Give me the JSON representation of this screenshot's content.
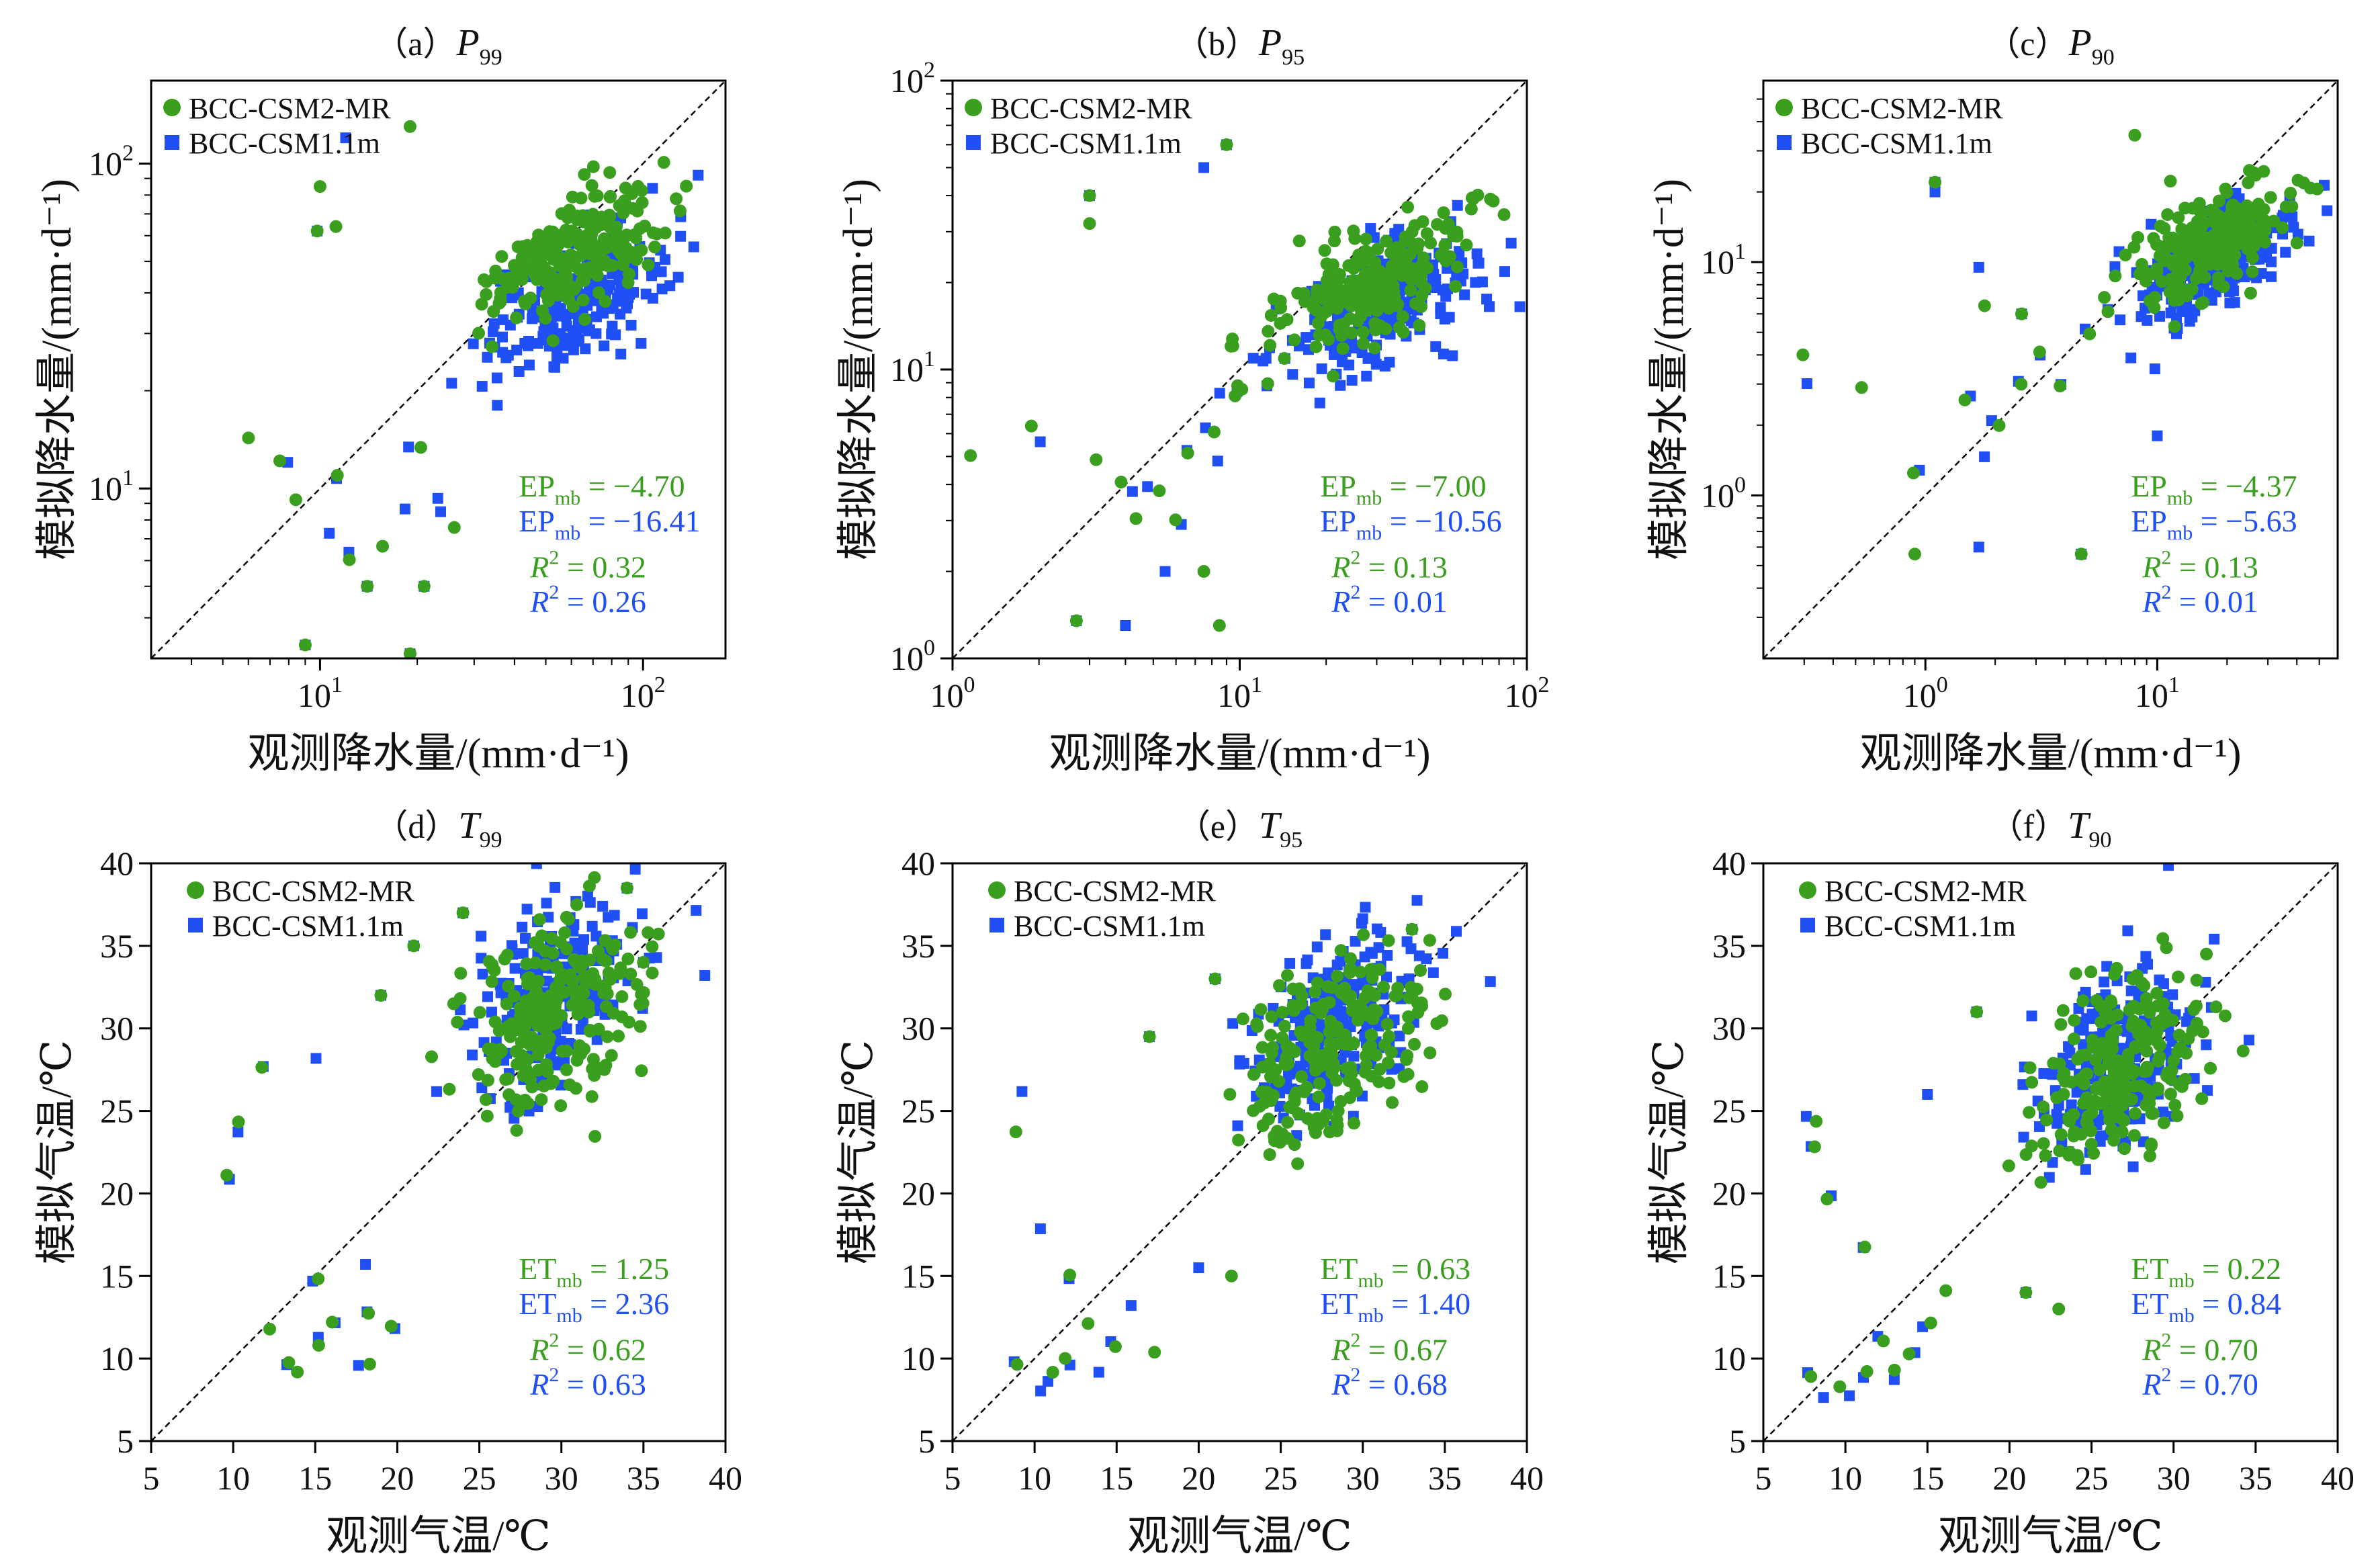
{
  "figure": {
    "axis_labels": {
      "precip_x": "观测降水量/(mm·d⁻¹)",
      "precip_y": "模拟降水量/(mm·d⁻¹)",
      "temp_x": "观测气温/℃",
      "temp_y": "模拟气温/℃"
    },
    "legend": {
      "series": [
        {
          "name": "BCC-CSM2-MR",
          "color": "#3a9e1e",
          "marker": "circle"
        },
        {
          "name": "BCC-CSM1.1m",
          "color": "#1f4ff5",
          "marker": "square"
        }
      ]
    }
  },
  "chart_data": [
    {
      "id": "a",
      "type": "scatter",
      "log": true,
      "title": {
        "prefix": "（a）",
        "var": "P",
        "sub": "99"
      },
      "xlim": [
        3,
        180
      ],
      "ylim": [
        3,
        180
      ],
      "xticks": [
        {
          "v": 10,
          "b": "10",
          "e": "1"
        },
        {
          "v": 100,
          "b": "10",
          "e": "2"
        }
      ],
      "yticks": [
        {
          "v": 10,
          "b": "10",
          "e": "1"
        },
        {
          "v": 100,
          "b": "10",
          "e": "2"
        }
      ],
      "center": [
        62,
        52
      ],
      "spread_x": 0.14,
      "spread_y": 0.09,
      "offset_b": -0.14,
      "lower": [
        [
          6,
          15
        ],
        [
          8,
          12
        ],
        [
          9,
          9
        ],
        [
          10,
          7
        ],
        [
          12,
          11
        ],
        [
          13,
          6
        ],
        [
          15,
          7
        ],
        [
          19,
          9
        ],
        [
          20,
          14
        ],
        [
          22,
          9
        ],
        [
          25,
          8
        ]
      ],
      "outliers": [
        [
          10,
          85
        ],
        [
          12,
          120
        ],
        [
          19,
          130
        ],
        [
          9,
          3.3
        ],
        [
          19,
          3.1
        ],
        [
          14,
          5
        ],
        [
          21,
          5
        ],
        [
          9.8,
          62
        ],
        [
          11.2,
          64
        ]
      ],
      "stats": [
        {
          "label": "EP",
          "sub": "mb",
          "value": "= −4.70",
          "series": 0
        },
        {
          "label": "EP",
          "sub": "mb",
          "value": "= −16.41",
          "series": 1
        },
        {
          "label": "R",
          "sup": "2",
          "value": "= 0.32",
          "series": 0
        },
        {
          "label": "R",
          "sup": "2",
          "value": "= 0.26",
          "series": 1
        }
      ]
    },
    {
      "id": "b",
      "type": "scatter",
      "log": true,
      "title": {
        "prefix": "（b）",
        "var": "P",
        "sub": "95"
      },
      "xlim": [
        1,
        100
      ],
      "ylim": [
        1,
        100
      ],
      "xticks": [
        {
          "v": 1,
          "b": "10",
          "e": "0"
        },
        {
          "v": 10,
          "b": "10",
          "e": "1"
        },
        {
          "v": 100,
          "b": "10",
          "e": "2"
        }
      ],
      "yticks": [
        {
          "v": 1,
          "b": "10",
          "e": "0"
        },
        {
          "v": 10,
          "b": "10",
          "e": "1"
        },
        {
          "v": 100,
          "b": "10",
          "e": "2"
        }
      ],
      "center": [
        30,
        20
      ],
      "spread_x": 0.17,
      "spread_y": 0.1,
      "offset_b": -0.1,
      "lower": [
        [
          1.2,
          5
        ],
        [
          2,
          6
        ],
        [
          3,
          5
        ],
        [
          4,
          4
        ],
        [
          4.5,
          3
        ],
        [
          5,
          4
        ],
        [
          6,
          3
        ],
        [
          7,
          5
        ],
        [
          8,
          6
        ],
        [
          9,
          8
        ],
        [
          10,
          9
        ],
        [
          12,
          9
        ]
      ],
      "outliers": [
        [
          9,
          60
        ],
        [
          7.5,
          50
        ],
        [
          2.7,
          1.35
        ],
        [
          4,
          1.3
        ],
        [
          8.5,
          1.3
        ],
        [
          3,
          40
        ],
        [
          3,
          32
        ],
        [
          5.5,
          2
        ],
        [
          7.5,
          2
        ]
      ],
      "stats": [
        {
          "label": "EP",
          "sub": "mb",
          "value": "= −7.00",
          "series": 0
        },
        {
          "label": "EP",
          "sub": "mb",
          "value": "= −10.56",
          "series": 1
        },
        {
          "label": "R",
          "sup": "2",
          "value": "= 0.13",
          "series": 0
        },
        {
          "label": "R",
          "sup": "2",
          "value": "= 0.01",
          "series": 1
        }
      ]
    },
    {
      "id": "c",
      "type": "scatter",
      "log": true,
      "title": {
        "prefix": "（c）",
        "var": "P",
        "sub": "90"
      },
      "xlim": [
        0.2,
        60
      ],
      "ylim": [
        0.2,
        60
      ],
      "xticks": [
        {
          "v": 1,
          "b": "10",
          "e": "0"
        },
        {
          "v": 10,
          "b": "10",
          "e": "1"
        }
      ],
      "yticks": [
        {
          "v": 1,
          "b": "10",
          "e": "0"
        },
        {
          "v": 10,
          "b": "10",
          "e": "1"
        }
      ],
      "center": [
        17,
        12
      ],
      "spread_x": 0.16,
      "spread_y": 0.1,
      "offset_b": -0.08,
      "lower": [
        [
          0.3,
          4
        ],
        [
          0.3,
          3
        ],
        [
          0.5,
          2.8
        ],
        [
          0.9,
          1.3
        ],
        [
          1.5,
          2.5
        ],
        [
          2,
          2
        ],
        [
          2.5,
          3
        ],
        [
          3,
          4
        ],
        [
          4,
          3
        ],
        [
          5,
          5
        ],
        [
          6,
          6
        ],
        [
          1.8,
          1.5
        ]
      ],
      "outliers": [
        [
          1.1,
          22
        ],
        [
          1.1,
          20
        ],
        [
          0.9,
          0.56
        ],
        [
          1.7,
          0.6
        ],
        [
          4.7,
          0.56
        ],
        [
          1.7,
          9.5
        ],
        [
          1.8,
          6.5
        ],
        [
          2.6,
          6
        ],
        [
          8,
          35
        ],
        [
          10,
          1.8
        ]
      ],
      "stats": [
        {
          "label": "EP",
          "sub": "mb",
          "value": "= −4.37",
          "series": 0
        },
        {
          "label": "EP",
          "sub": "mb",
          "value": "= −5.63",
          "series": 1
        },
        {
          "label": "R",
          "sup": "2",
          "value": "= 0.13",
          "series": 0
        },
        {
          "label": "R",
          "sup": "2",
          "value": "= 0.01",
          "series": 1
        }
      ]
    },
    {
      "id": "d",
      "type": "scatter",
      "log": false,
      "title": {
        "prefix": "（d）",
        "var": "T",
        "sub": "99"
      },
      "xlim": [
        5,
        40
      ],
      "ylim": [
        5,
        40
      ],
      "xticks": [
        5,
        10,
        15,
        20,
        25,
        30,
        35,
        40
      ],
      "yticks": [
        5,
        10,
        15,
        20,
        25,
        30,
        35,
        40
      ],
      "center": [
        29.5,
        31
      ],
      "spread_x": 2.6,
      "spread_y": 2.8,
      "offset_b": 1.2,
      "lower": [
        [
          12,
          12
        ],
        [
          13,
          10
        ],
        [
          15,
          11
        ],
        [
          16,
          12
        ],
        [
          18,
          13
        ],
        [
          20,
          12
        ],
        [
          15,
          15
        ],
        [
          18,
          16
        ],
        [
          12,
          28
        ],
        [
          15,
          28
        ],
        [
          10,
          24
        ],
        [
          10,
          21
        ],
        [
          14,
          9
        ],
        [
          18,
          9.5
        ]
      ],
      "outliers": [
        [
          21,
          35
        ],
        [
          19,
          32
        ],
        [
          24,
          37
        ],
        [
          34,
          38.5
        ],
        [
          35,
          34
        ]
      ],
      "stats": [
        {
          "label": "ET",
          "sub": "mb",
          "value": "= 1.25",
          "series": 0
        },
        {
          "label": "ET",
          "sub": "mb",
          "value": "= 2.36",
          "series": 1
        },
        {
          "label": "R",
          "sup": "2",
          "value": "= 0.62",
          "series": 0
        },
        {
          "label": "R",
          "sup": "2",
          "value": "= 0.63",
          "series": 1
        }
      ]
    },
    {
      "id": "e",
      "type": "scatter",
      "log": false,
      "title": {
        "prefix": "（e）",
        "var": "T",
        "sub": "95"
      },
      "xlim": [
        5,
        40
      ],
      "ylim": [
        5,
        40
      ],
      "xticks": [
        5,
        10,
        15,
        20,
        25,
        30,
        35,
        40
      ],
      "yticks": [
        5,
        10,
        15,
        20,
        25,
        30,
        35,
        40
      ],
      "center": [
        28,
        29
      ],
      "spread_x": 2.5,
      "spread_y": 2.6,
      "offset_b": 0.8,
      "lower": [
        [
          9,
          10
        ],
        [
          10,
          8
        ],
        [
          11,
          9
        ],
        [
          12,
          10
        ],
        [
          13,
          12
        ],
        [
          14,
          9
        ],
        [
          15,
          11
        ],
        [
          16,
          13
        ],
        [
          17,
          10
        ],
        [
          9,
          26
        ],
        [
          9,
          24
        ],
        [
          10,
          18
        ],
        [
          12,
          15
        ]
      ],
      "outliers": [
        [
          21,
          33
        ],
        [
          17,
          29.5
        ],
        [
          33,
          36
        ],
        [
          20,
          15.5
        ],
        [
          22,
          15
        ]
      ],
      "stats": [
        {
          "label": "ET",
          "sub": "mb",
          "value": "= 0.63",
          "series": 0
        },
        {
          "label": "ET",
          "sub": "mb",
          "value": "= 1.40",
          "series": 1
        },
        {
          "label": "R",
          "sup": "2",
          "value": "= 0.67",
          "series": 0
        },
        {
          "label": "R",
          "sup": "2",
          "value": "= 0.68",
          "series": 1
        }
      ]
    },
    {
      "id": "f",
      "type": "scatter",
      "log": false,
      "title": {
        "prefix": "（f）",
        "var": "T",
        "sub": "90"
      },
      "xlim": [
        5,
        40
      ],
      "ylim": [
        5,
        40
      ],
      "xticks": [
        5,
        10,
        15,
        20,
        25,
        30,
        35,
        40
      ],
      "yticks": [
        5,
        10,
        15,
        20,
        25,
        30,
        35,
        40
      ],
      "center": [
        26.5,
        27.5
      ],
      "spread_x": 2.5,
      "spread_y": 2.6,
      "offset_b": 0.5,
      "lower": [
        [
          8,
          9
        ],
        [
          9,
          8
        ],
        [
          10,
          8
        ],
        [
          11,
          9
        ],
        [
          12,
          11
        ],
        [
          13,
          9
        ],
        [
          14,
          10
        ],
        [
          15,
          12
        ],
        [
          16,
          14
        ],
        [
          8,
          24.5
        ],
        [
          8,
          23
        ],
        [
          9,
          20
        ],
        [
          11,
          17
        ]
      ],
      "outliers": [
        [
          18,
          31
        ],
        [
          15,
          26
        ],
        [
          32,
          34.5
        ],
        [
          21,
          14
        ],
        [
          23,
          13
        ]
      ],
      "stats": [
        {
          "label": "ET",
          "sub": "mb",
          "value": "= 0.22",
          "series": 0
        },
        {
          "label": "ET",
          "sub": "mb",
          "value": "= 0.84",
          "series": 1
        },
        {
          "label": "R",
          "sup": "2",
          "value": "= 0.70",
          "series": 0
        },
        {
          "label": "R",
          "sup": "2",
          "value": "= 0.70",
          "series": 1
        }
      ]
    }
  ]
}
